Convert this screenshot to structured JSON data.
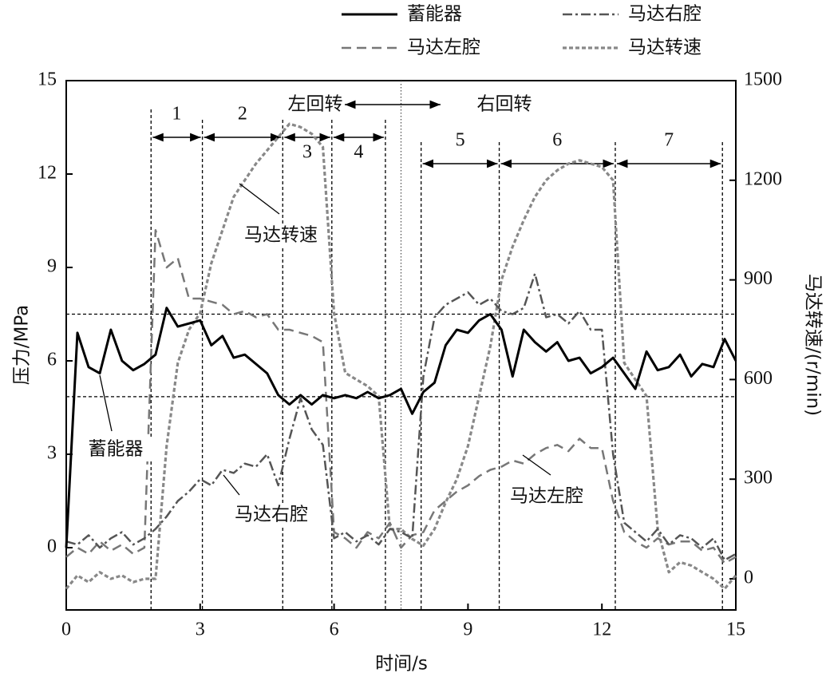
{
  "chart_data": {
    "type": "line",
    "xlabel": "时间/s",
    "ylabel": "压力/MPa",
    "y2label": "马达转速/(r/min)",
    "x": [
      0,
      0.25,
      0.5,
      0.75,
      1,
      1.25,
      1.5,
      1.75,
      2,
      2.25,
      2.5,
      2.75,
      3,
      3.25,
      3.5,
      3.75,
      4,
      4.25,
      4.5,
      4.75,
      5,
      5.25,
      5.5,
      5.75,
      6,
      6.25,
      6.5,
      6.75,
      7,
      7.25,
      7.5,
      7.75,
      8,
      8.25,
      8.5,
      8.75,
      9,
      9.25,
      9.5,
      9.75,
      10,
      10.25,
      10.5,
      10.75,
      11,
      11.25,
      11.5,
      11.75,
      12,
      12.25,
      12.5,
      12.75,
      13,
      13.25,
      13.5,
      13.75,
      14,
      14.25,
      14.5,
      14.75,
      15
    ],
    "series": [
      {
        "name": "蓄能器",
        "color": "#000000",
        "style": "solid",
        "values": [
          0,
          6.9,
          5.8,
          5.6,
          7.0,
          6.0,
          5.7,
          5.9,
          6.2,
          7.7,
          7.1,
          7.2,
          7.3,
          6.5,
          6.8,
          6.1,
          6.2,
          5.9,
          5.6,
          4.9,
          4.6,
          4.9,
          4.6,
          4.9,
          4.8,
          4.9,
          4.8,
          5.0,
          4.8,
          4.9,
          5.1,
          4.3,
          5.0,
          5.3,
          6.5,
          7.0,
          6.9,
          7.3,
          7.5,
          7.0,
          5.5,
          7.0,
          6.6,
          6.3,
          6.6,
          6.0,
          6.1,
          5.6,
          5.8,
          6.1,
          5.6,
          5.1,
          6.3,
          5.7,
          5.8,
          6.2,
          5.5,
          5.9,
          5.8,
          6.7,
          6.0
        ]
      },
      {
        "name": "马达右腔",
        "color": "#555555",
        "style": "dashdot",
        "values": [
          0.2,
          0.1,
          0.4,
          0.0,
          0.3,
          0.5,
          0.1,
          0.3,
          0.6,
          1.0,
          1.5,
          1.8,
          2.2,
          2.0,
          2.5,
          2.4,
          2.7,
          2.6,
          3.0,
          2.0,
          3.5,
          4.8,
          3.8,
          3.3,
          0.3,
          0.5,
          0.2,
          0.4,
          0.1,
          0.6,
          0.5,
          0.3,
          5.5,
          7.4,
          7.8,
          8.0,
          8.2,
          7.8,
          8.0,
          7.6,
          7.5,
          7.7,
          8.8,
          7.4,
          7.5,
          7.2,
          7.6,
          7.0,
          7.0,
          3.0,
          0.8,
          0.5,
          0.2,
          0.6,
          0.1,
          0.4,
          0.3,
          0.0,
          0.3,
          -0.4,
          -0.2
        ]
      },
      {
        "name": "马达左腔",
        "color": "#777777",
        "style": "dashed",
        "values": [
          -0.3,
          0.0,
          -0.2,
          0.2,
          -0.1,
          0.1,
          -0.2,
          0.0,
          10.2,
          9.0,
          9.3,
          8.0,
          8.0,
          7.9,
          7.8,
          7.5,
          7.6,
          7.4,
          7.5,
          7.0,
          7.0,
          6.9,
          6.8,
          6.6,
          0.5,
          0.3,
          0.0,
          0.5,
          0.3,
          0.8,
          0.0,
          0.4,
          0.5,
          1.2,
          1.5,
          1.8,
          2.0,
          2.3,
          2.5,
          2.6,
          2.8,
          2.7,
          3.0,
          3.2,
          3.3,
          3.1,
          3.5,
          3.2,
          3.2,
          1.5,
          0.5,
          0.2,
          0.0,
          0.3,
          0.1,
          0.2,
          0.2,
          -0.1,
          0.0,
          -0.5,
          -0.3
        ]
      },
      {
        "name": "马达转速",
        "color": "#888888",
        "style": "dotted",
        "axis": "y2",
        "values": [
          -30,
          10,
          -10,
          20,
          0,
          10,
          -10,
          0,
          0,
          400,
          650,
          750,
          800,
          950,
          1050,
          1150,
          1200,
          1250,
          1290,
          1330,
          1370,
          1360,
          1340,
          1300,
          800,
          620,
          600,
          580,
          550,
          150,
          150,
          120,
          100,
          150,
          230,
          300,
          400,
          550,
          700,
          900,
          1000,
          1080,
          1150,
          1200,
          1230,
          1250,
          1260,
          1250,
          1240,
          1200,
          650,
          600,
          550,
          150,
          20,
          50,
          40,
          20,
          0,
          -30,
          10
        ]
      }
    ],
    "xlim": [
      0,
      15
    ],
    "xticks": [
      0,
      3,
      6,
      9,
      12,
      15
    ],
    "ylim": [
      -2,
      15
    ],
    "yticks": [
      0,
      3,
      6,
      9,
      12,
      15
    ],
    "y2lim": [
      -93.75,
      1500
    ],
    "y2ticks": [
      0,
      300,
      600,
      900,
      1200,
      1500
    ],
    "hlines": [
      7.5,
      4.85
    ],
    "phases": [
      {
        "label": "1",
        "start": 1.9,
        "end": 3.05
      },
      {
        "label": "2",
        "start": 3.05,
        "end": 4.85
      },
      {
        "label": "3",
        "start": 4.85,
        "end": 5.95
      },
      {
        "label": "4",
        "start": 5.95,
        "end": 7.15
      },
      {
        "label": "5",
        "start": 7.95,
        "end": 9.7
      },
      {
        "label": "6",
        "start": 9.7,
        "end": 12.3
      },
      {
        "label": "7",
        "start": 12.3,
        "end": 14.7
      }
    ],
    "switch_time": 7.5,
    "direction_labels": [
      "左回转",
      "右回转"
    ],
    "callouts": [
      "蓄能器",
      "马达转速",
      "马达右腔",
      "马达左腔"
    ]
  }
}
